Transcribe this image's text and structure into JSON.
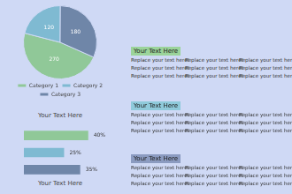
{
  "chart_data": [
    {
      "type": "pie",
      "categories": [
        "Category 1",
        "Category 2",
        "Category 3"
      ],
      "values": [
        270,
        120,
        180
      ],
      "colors": [
        "#90c898",
        "#7fbad2",
        "#6f86a8"
      ],
      "data_labels": true,
      "legend": "bottom"
    },
    {
      "type": "bar",
      "orientation": "horizontal",
      "categories": [
        null,
        null,
        null
      ],
      "values": [
        40,
        25,
        35
      ],
      "value_labels": [
        "40%",
        "25%",
        "35%"
      ],
      "colors": [
        "#90c898",
        "#7fbad2",
        "#6f86a8"
      ],
      "xlim": [
        0,
        55
      ],
      "data_labels": true,
      "tick_labels": false,
      "grid": false
    }
  ],
  "captions": [
    "Your Text Here",
    "Your Text Here"
  ],
  "sections": [
    {
      "heading": "Your Text Here",
      "body": [
        [
          "Replace your text here!",
          "Replace your text here!",
          "Replace your text here!"
        ],
        [
          "Replace your text here!",
          "Replace your text here!",
          "Replace your text here!"
        ],
        [
          "Replace your text here!",
          "Replace your text here!",
          "Replace your text here!"
        ]
      ]
    },
    {
      "heading": "Your Text Here",
      "body": [
        [
          "Replace your text here!",
          "Replace your text here!",
          "Replace your text here!"
        ],
        [
          "Replace your text here!",
          "Replace your text here!",
          "Replace your text here!"
        ],
        [
          "Replace your text here!",
          "Replace your text here!",
          "Replace your text here!"
        ]
      ]
    },
    {
      "heading": "Your Text Here",
      "body": [
        [
          "Replace your text here!",
          "Replace your text here!",
          "Replace your text here!"
        ],
        [
          "Replace your text here!",
          "Replace your text here!",
          "Replace your text here!"
        ],
        [
          "Replace your text here!",
          "Replace your text here!",
          "Replace your text here!"
        ]
      ]
    }
  ]
}
